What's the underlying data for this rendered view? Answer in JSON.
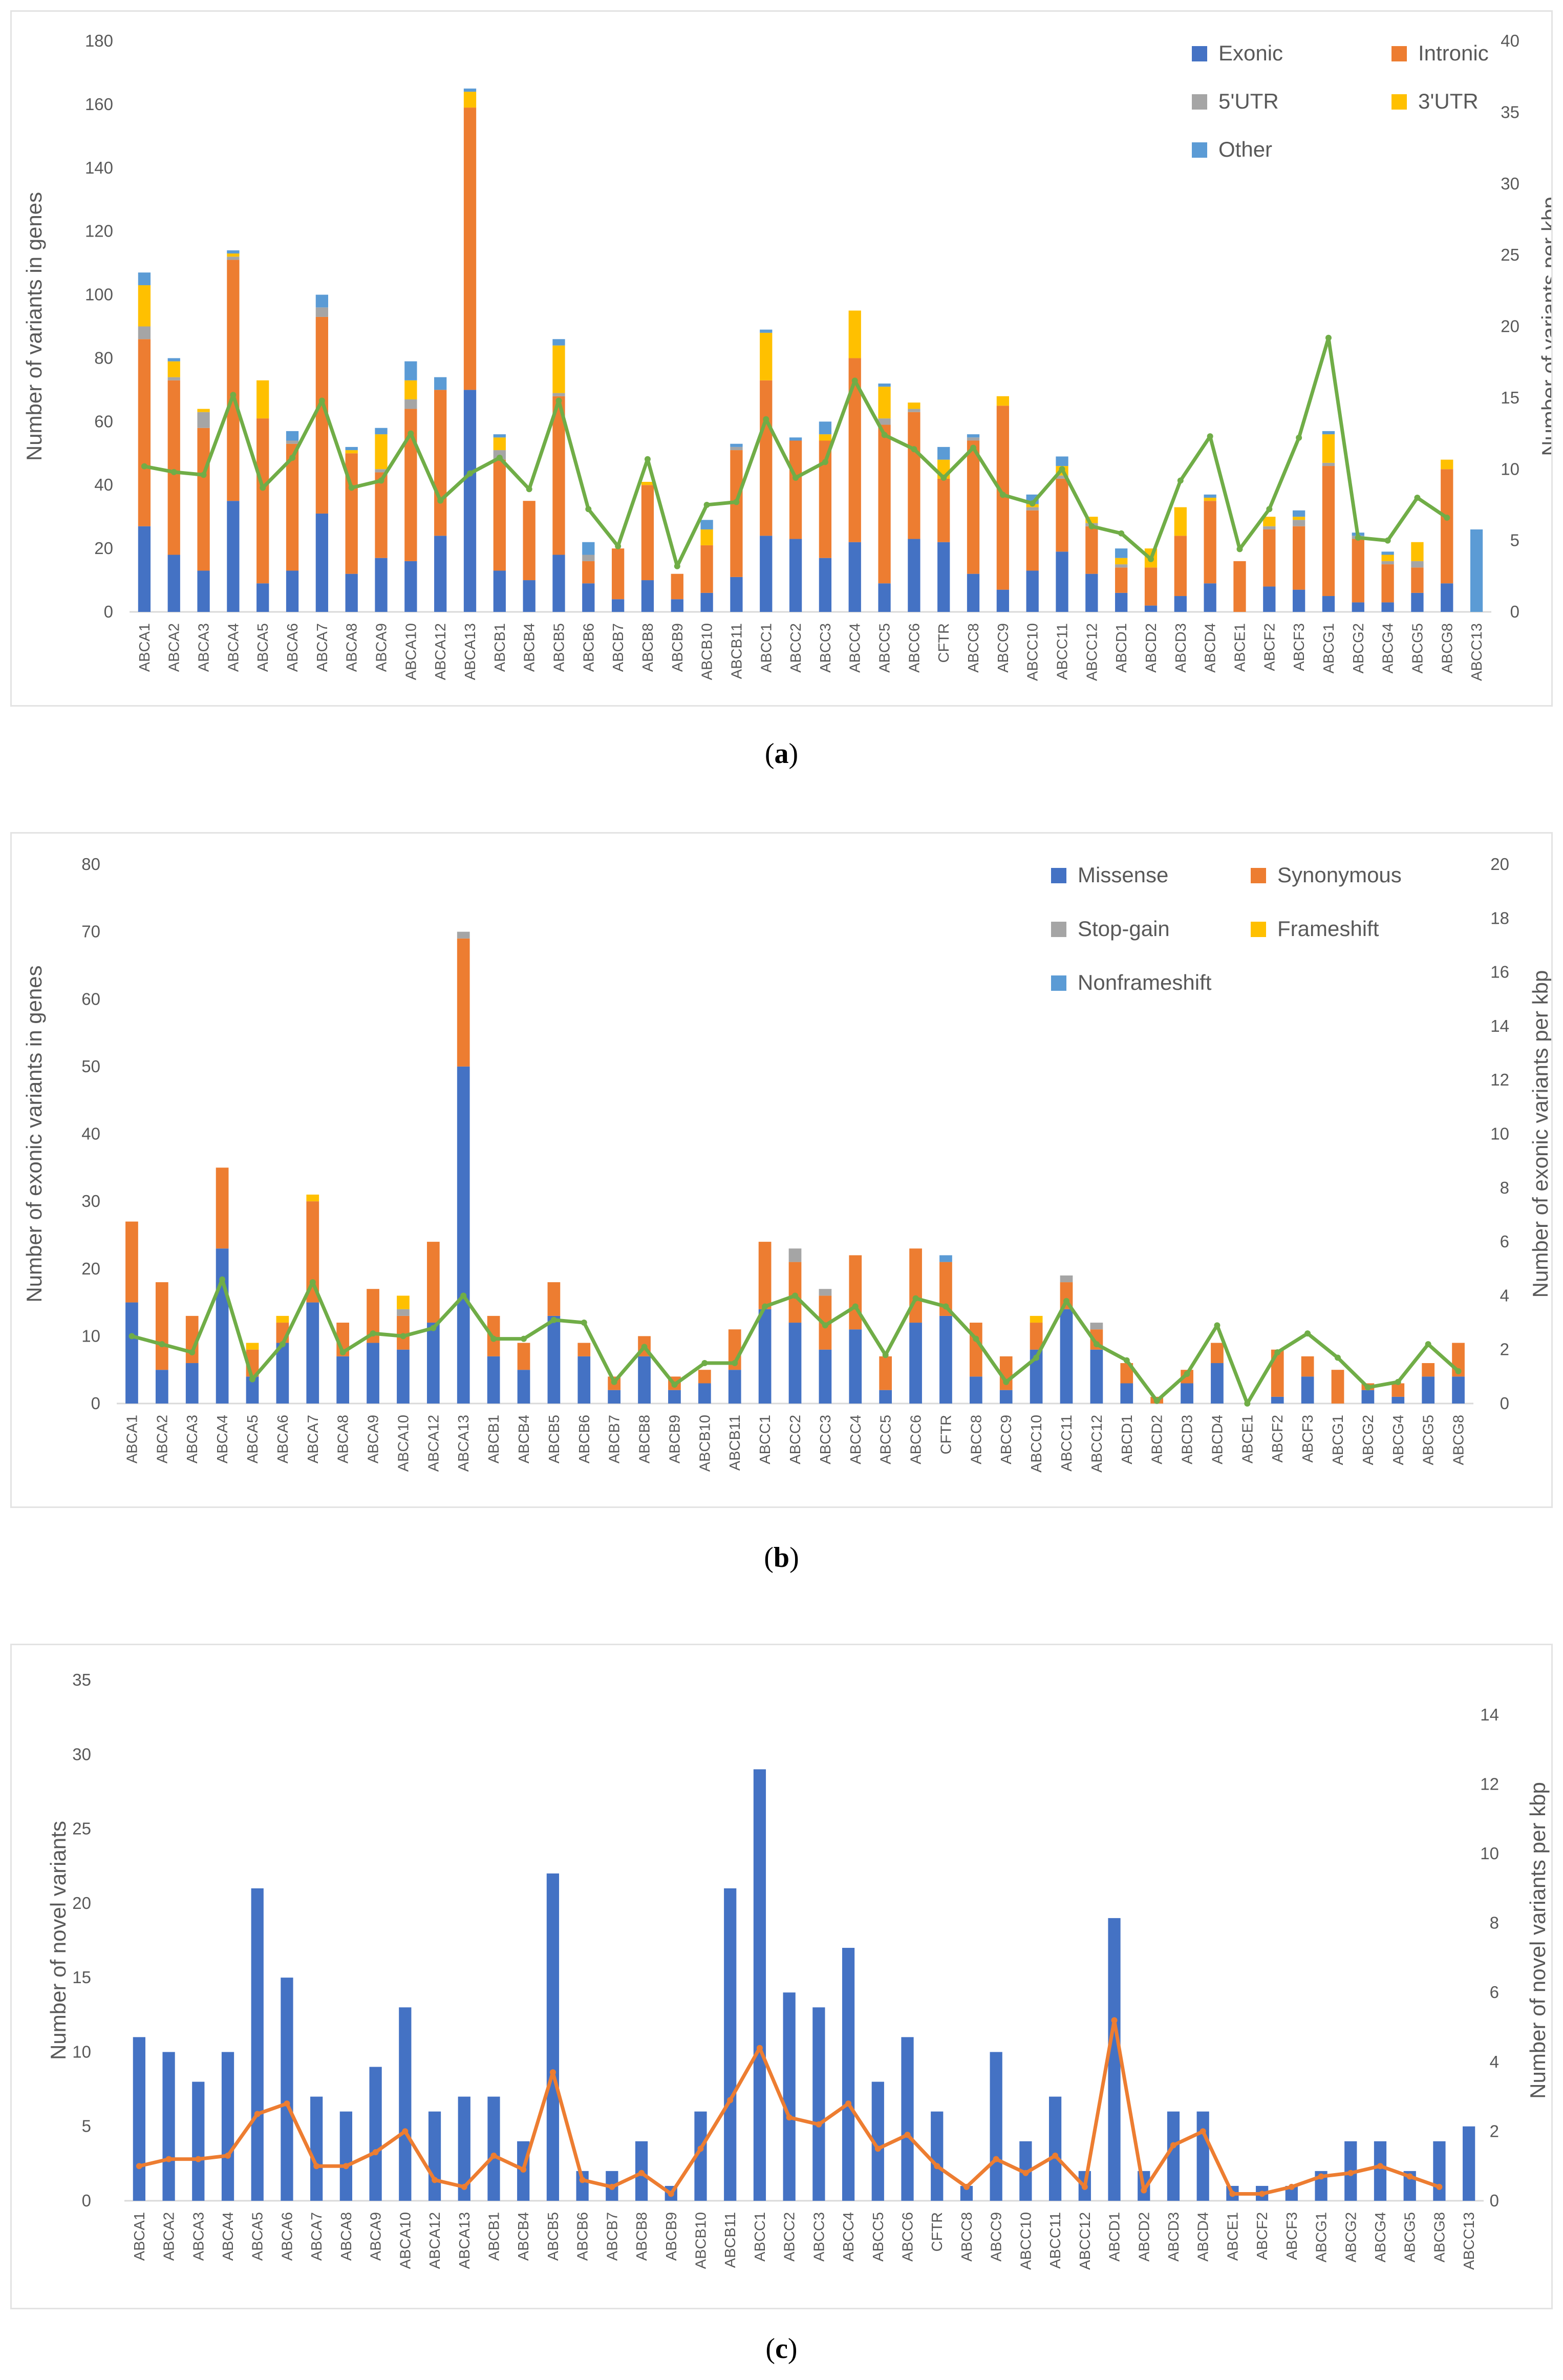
{
  "colors": {
    "blue": "#4472C4",
    "orange": "#ED7D31",
    "gray": "#A5A5A5",
    "yellow": "#FFC000",
    "lightblue": "#5B9BD5",
    "green": "#70AD47",
    "axis": "#595959",
    "grid": "#d9d9d9"
  },
  "panels": [
    {
      "label_open": "(",
      "label_letter": "a",
      "label_close": ")"
    },
    {
      "label_open": "(",
      "label_letter": "b",
      "label_close": ")"
    },
    {
      "label_open": "(",
      "label_letter": "c",
      "label_close": ")"
    }
  ],
  "chart_data": [
    {
      "type": "bar",
      "stacked": true,
      "ylabel": "Number of variants in genes",
      "y2label": "Number of variants per kbp",
      "ylim": [
        0,
        180
      ],
      "yticks": [
        0,
        20,
        40,
        60,
        80,
        100,
        120,
        140,
        160,
        180
      ],
      "y2lim": [
        0,
        40
      ],
      "y2ticks": [
        0,
        5,
        10,
        15,
        20,
        25,
        30,
        35,
        40
      ],
      "legend_position": "top-right",
      "categories": [
        "ABCA1",
        "ABCA2",
        "ABCA3",
        "ABCA4",
        "ABCA5",
        "ABCA6",
        "ABCA7",
        "ABCA8",
        "ABCA9",
        "ABCA10",
        "ABCA12",
        "ABCA13",
        "ABCB1",
        "ABCB4",
        "ABCB5",
        "ABCB6",
        "ABCB7",
        "ABCB8",
        "ABCB9",
        "ABCB10",
        "ABCB11",
        "ABCC1",
        "ABCC2",
        "ABCC3",
        "ABCC4",
        "ABCC5",
        "ABCC6",
        "CFTR",
        "ABCC8",
        "ABCC9",
        "ABCC10",
        "ABCC11",
        "ABCC12",
        "ABCD1",
        "ABCD2",
        "ABCD3",
        "ABCD4",
        "ABCE1",
        "ABCF2",
        "ABCF3",
        "ABCG1",
        "ABCG2",
        "ABCG4",
        "ABCG5",
        "ABCG8",
        "ABCC13"
      ],
      "series": [
        {
          "name": "Exonic",
          "color": "#4472C4",
          "values": [
            27,
            18,
            13,
            35,
            9,
            13,
            31,
            12,
            17,
            16,
            24,
            70,
            13,
            10,
            18,
            9,
            4,
            10,
            4,
            6,
            11,
            24,
            23,
            17,
            22,
            9,
            23,
            22,
            12,
            7,
            13,
            19,
            12,
            6,
            2,
            5,
            9,
            0,
            8,
            7,
            5,
            3,
            3,
            6,
            9,
            0
          ]
        },
        {
          "name": "Intronic",
          "color": "#ED7D31",
          "values": [
            59,
            55,
            45,
            76,
            52,
            40,
            62,
            38,
            27,
            48,
            46,
            89,
            35,
            25,
            50,
            7,
            16,
            30,
            8,
            15,
            40,
            49,
            31,
            37,
            58,
            50,
            40,
            20,
            42,
            58,
            19,
            23,
            15,
            8,
            12,
            19,
            26,
            16,
            18,
            20,
            41,
            20,
            12,
            8,
            36,
            0
          ]
        },
        {
          "name": "5'UTR",
          "color": "#A5A5A5",
          "values": [
            4,
            1,
            5,
            1,
            0,
            1,
            3,
            0,
            1,
            3,
            0,
            0,
            3,
            0,
            1,
            2,
            0,
            0,
            0,
            0,
            1,
            0,
            0,
            0,
            0,
            2,
            1,
            0,
            1,
            0,
            1,
            1,
            1,
            1,
            0,
            0,
            0,
            0,
            1,
            2,
            1,
            1,
            1,
            2,
            0,
            0
          ]
        },
        {
          "name": "3'UTR",
          "color": "#FFC000",
          "values": [
            13,
            5,
            1,
            1,
            12,
            0,
            0,
            1,
            11,
            6,
            0,
            5,
            4,
            0,
            15,
            0,
            0,
            1,
            0,
            5,
            0,
            15,
            0,
            2,
            15,
            10,
            2,
            6,
            0,
            3,
            1,
            3,
            2,
            2,
            6,
            9,
            1,
            0,
            3,
            1,
            9,
            0,
            2,
            6,
            3,
            0
          ]
        },
        {
          "name": "Other",
          "color": "#5B9BD5",
          "values": [
            4,
            1,
            0,
            1,
            0,
            3,
            4,
            1,
            2,
            6,
            4,
            1,
            1,
            0,
            2,
            4,
            0,
            0,
            0,
            3,
            1,
            1,
            1,
            4,
            0,
            1,
            0,
            4,
            1,
            0,
            3,
            3,
            0,
            3,
            0,
            0,
            1,
            0,
            0,
            2,
            1,
            1,
            1,
            0,
            0,
            26
          ]
        }
      ],
      "line": {
        "name": "Number of variants per kbp",
        "color": "#70AD47",
        "axis": "secondary",
        "values": [
          10.2,
          9.8,
          9.6,
          15.2,
          8.7,
          10.8,
          14.8,
          8.7,
          9.2,
          12.5,
          7.8,
          9.7,
          10.8,
          8.6,
          14.8,
          7.2,
          4.6,
          10.7,
          3.2,
          7.5,
          7.7,
          13.5,
          9.4,
          10.5,
          16.2,
          12.4,
          11.4,
          9.4,
          11.5,
          8.2,
          7.6,
          10.0,
          6.0,
          5.5,
          3.7,
          9.2,
          12.3,
          4.4,
          7.2,
          12.2,
          19.2,
          5.2,
          5.0,
          8.0,
          6.6,
          null
        ]
      }
    },
    {
      "type": "bar",
      "stacked": true,
      "ylabel": "Number of exonic variants in genes",
      "y2label": "Number of exonic variants per kbp",
      "ylim": [
        0,
        80
      ],
      "yticks": [
        0,
        10,
        20,
        30,
        40,
        50,
        60,
        70,
        80
      ],
      "y2lim": [
        0,
        20
      ],
      "y2ticks": [
        0,
        2,
        4,
        6,
        8,
        10,
        12,
        14,
        16,
        18,
        20
      ],
      "legend_position": "top-right",
      "categories": [
        "ABCA1",
        "ABCA2",
        "ABCA3",
        "ABCA4",
        "ABCA5",
        "ABCA6",
        "ABCA7",
        "ABCA8",
        "ABCA9",
        "ABCA10",
        "ABCA12",
        "ABCA13",
        "ABCB1",
        "ABCB4",
        "ABCB5",
        "ABCB6",
        "ABCB7",
        "ABCB8",
        "ABCB9",
        "ABCB10",
        "ABCB11",
        "ABCC1",
        "ABCC2",
        "ABCC3",
        "ABCC4",
        "ABCC5",
        "ABCC6",
        "CFTR",
        "ABCC8",
        "ABCC9",
        "ABCC10",
        "ABCC11",
        "ABCC12",
        "ABCD1",
        "ABCD2",
        "ABCD3",
        "ABCD4",
        "ABCE1",
        "ABCF2",
        "ABCF3",
        "ABCG1",
        "ABCG2",
        "ABCG4",
        "ABCG5",
        "ABCG8"
      ],
      "series": [
        {
          "name": "Missense",
          "color": "#4472C4",
          "values": [
            15,
            5,
            6,
            23,
            4,
            9,
            15,
            7,
            9,
            8,
            12,
            50,
            7,
            5,
            13,
            7,
            2,
            7,
            2,
            3,
            5,
            14,
            12,
            8,
            11,
            2,
            12,
            13,
            4,
            2,
            8,
            14,
            8,
            3,
            0,
            3,
            6,
            0,
            1,
            4,
            0,
            2,
            1,
            4,
            4
          ]
        },
        {
          "name": "Synonymous",
          "color": "#ED7D31",
          "values": [
            12,
            13,
            7,
            12,
            4,
            3,
            15,
            5,
            8,
            5,
            12,
            19,
            6,
            4,
            5,
            2,
            2,
            3,
            2,
            2,
            6,
            10,
            9,
            8,
            11,
            5,
            11,
            8,
            8,
            5,
            4,
            4,
            3,
            3,
            1,
            2,
            3,
            0,
            7,
            3,
            5,
            1,
            2,
            2,
            5
          ]
        },
        {
          "name": "Stop-gain",
          "color": "#A5A5A5",
          "values": [
            0,
            0,
            0,
            0,
            0,
            0,
            0,
            0,
            0,
            1,
            0,
            1,
            0,
            0,
            0,
            0,
            0,
            0,
            0,
            0,
            0,
            0,
            2,
            1,
            0,
            0,
            0,
            0,
            0,
            0,
            0,
            1,
            1,
            0,
            0,
            0,
            0,
            0,
            0,
            0,
            0,
            0,
            0,
            0,
            0
          ]
        },
        {
          "name": "Frameshift",
          "color": "#FFC000",
          "values": [
            0,
            0,
            0,
            0,
            1,
            1,
            1,
            0,
            0,
            2,
            0,
            0,
            0,
            0,
            0,
            0,
            0,
            0,
            0,
            0,
            0,
            0,
            0,
            0,
            0,
            0,
            0,
            0,
            0,
            0,
            1,
            0,
            0,
            0,
            0,
            0,
            0,
            0,
            0,
            0,
            0,
            0,
            0,
            0,
            0
          ]
        },
        {
          "name": "Nonframeshift",
          "color": "#5B9BD5",
          "values": [
            0,
            0,
            0,
            0,
            0,
            0,
            0,
            0,
            0,
            0,
            0,
            0,
            0,
            0,
            0,
            0,
            0,
            0,
            0,
            0,
            0,
            0,
            0,
            0,
            0,
            0,
            0,
            1,
            0,
            0,
            0,
            0,
            0,
            0,
            0,
            0,
            0,
            0,
            0,
            0,
            0,
            0,
            0,
            0,
            0
          ]
        }
      ],
      "line": {
        "name": "Number of exonic variants per kbp",
        "color": "#70AD47",
        "axis": "secondary",
        "values": [
          2.5,
          2.2,
          1.9,
          4.6,
          0.9,
          2.2,
          4.5,
          1.9,
          2.6,
          2.5,
          2.8,
          4.0,
          2.4,
          2.4,
          3.1,
          3.0,
          0.8,
          2.1,
          0.7,
          1.5,
          1.5,
          3.6,
          4.0,
          2.9,
          3.6,
          1.8,
          3.9,
          3.6,
          2.4,
          0.8,
          1.7,
          3.8,
          2.2,
          1.6,
          0.1,
          1.1,
          2.9,
          0.0,
          1.9,
          2.6,
          1.7,
          0.6,
          0.8,
          2.2,
          1.2
        ]
      }
    },
    {
      "type": "bar",
      "stacked": false,
      "ylabel": "Number of novel variants",
      "y2label": "Number of novel variants per kbp",
      "ylim": [
        0,
        35
      ],
      "yticks": [
        0,
        5,
        10,
        15,
        20,
        25,
        30,
        35
      ],
      "y2lim": [
        0,
        15
      ],
      "y2ticks": [
        0,
        2,
        4,
        6,
        8,
        10,
        12,
        14
      ],
      "categories": [
        "ABCA1",
        "ABCA2",
        "ABCA3",
        "ABCA4",
        "ABCA5",
        "ABCA6",
        "ABCA7",
        "ABCA8",
        "ABCA9",
        "ABCA10",
        "ABCA12",
        "ABCA13",
        "ABCB1",
        "ABCB4",
        "ABCB5",
        "ABCB6",
        "ABCB7",
        "ABCB8",
        "ABCB9",
        "ABCB10",
        "ABCB11",
        "ABCC1",
        "ABCC2",
        "ABCC3",
        "ABCC4",
        "ABCC5",
        "ABCC6",
        "CFTR",
        "ABCC8",
        "ABCC9",
        "ABCC10",
        "ABCC11",
        "ABCC12",
        "ABCD1",
        "ABCD2",
        "ABCD3",
        "ABCD4",
        "ABCE1",
        "ABCF2",
        "ABCF3",
        "ABCG1",
        "ABCG2",
        "ABCG4",
        "ABCG5",
        "ABCG8",
        "ABCC13"
      ],
      "series": [
        {
          "name": "Novel variants",
          "color": "#4472C4",
          "values": [
            11,
            10,
            8,
            10,
            21,
            15,
            7,
            6,
            9,
            13,
            6,
            7,
            7,
            4,
            22,
            2,
            2,
            4,
            1,
            6,
            21,
            29,
            14,
            13,
            17,
            8,
            11,
            6,
            1,
            10,
            4,
            7,
            2,
            19,
            2,
            6,
            6,
            1,
            1,
            1,
            2,
            4,
            4,
            2,
            4,
            5
          ]
        }
      ],
      "line": {
        "name": "Number of novel variants per kbp",
        "color": "#ED7D31",
        "axis": "secondary",
        "values": [
          1.0,
          1.2,
          1.2,
          1.3,
          2.5,
          2.8,
          1.0,
          1.0,
          1.4,
          2.0,
          0.6,
          0.4,
          1.3,
          0.9,
          3.7,
          0.6,
          0.4,
          0.8,
          0.2,
          1.5,
          2.9,
          4.4,
          2.4,
          2.2,
          2.8,
          1.5,
          1.9,
          1.0,
          0.4,
          1.2,
          0.8,
          1.3,
          0.4,
          5.2,
          0.3,
          1.6,
          2.0,
          0.2,
          0.2,
          0.4,
          0.7,
          0.8,
          1.0,
          0.7,
          0.4,
          null
        ]
      }
    }
  ]
}
